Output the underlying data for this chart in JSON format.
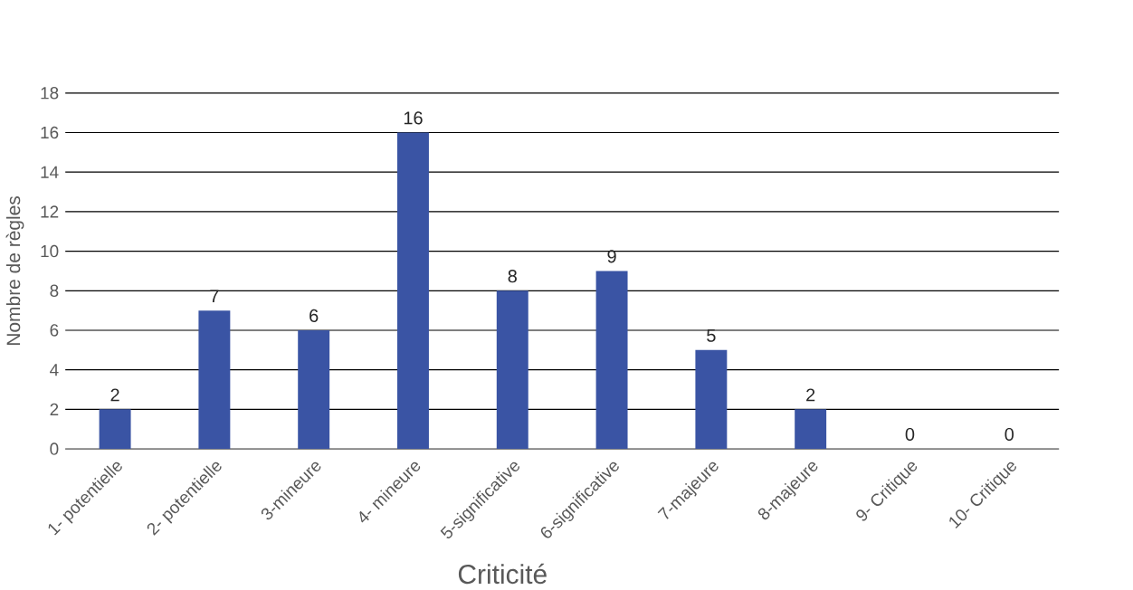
{
  "chart_data": {
    "type": "bar",
    "xlabel": "Criticité",
    "ylabel": "Nombre de règles",
    "categories": [
      "1- potentielle",
      "2- potentielle",
      "3-mineure",
      "4- mineure",
      "5-significative",
      "6-significative",
      "7-majeure",
      "8-majeure",
      "9- Critique",
      "10- Critique"
    ],
    "values": [
      2,
      7,
      6,
      16,
      8,
      9,
      5,
      2,
      0,
      0
    ],
    "color": "#3a54a4",
    "ylim": [
      0,
      18
    ],
    "yticks": [
      0,
      2,
      4,
      6,
      8,
      10,
      12,
      14,
      16,
      18
    ],
    "grid": "y",
    "data_labels": true
  }
}
